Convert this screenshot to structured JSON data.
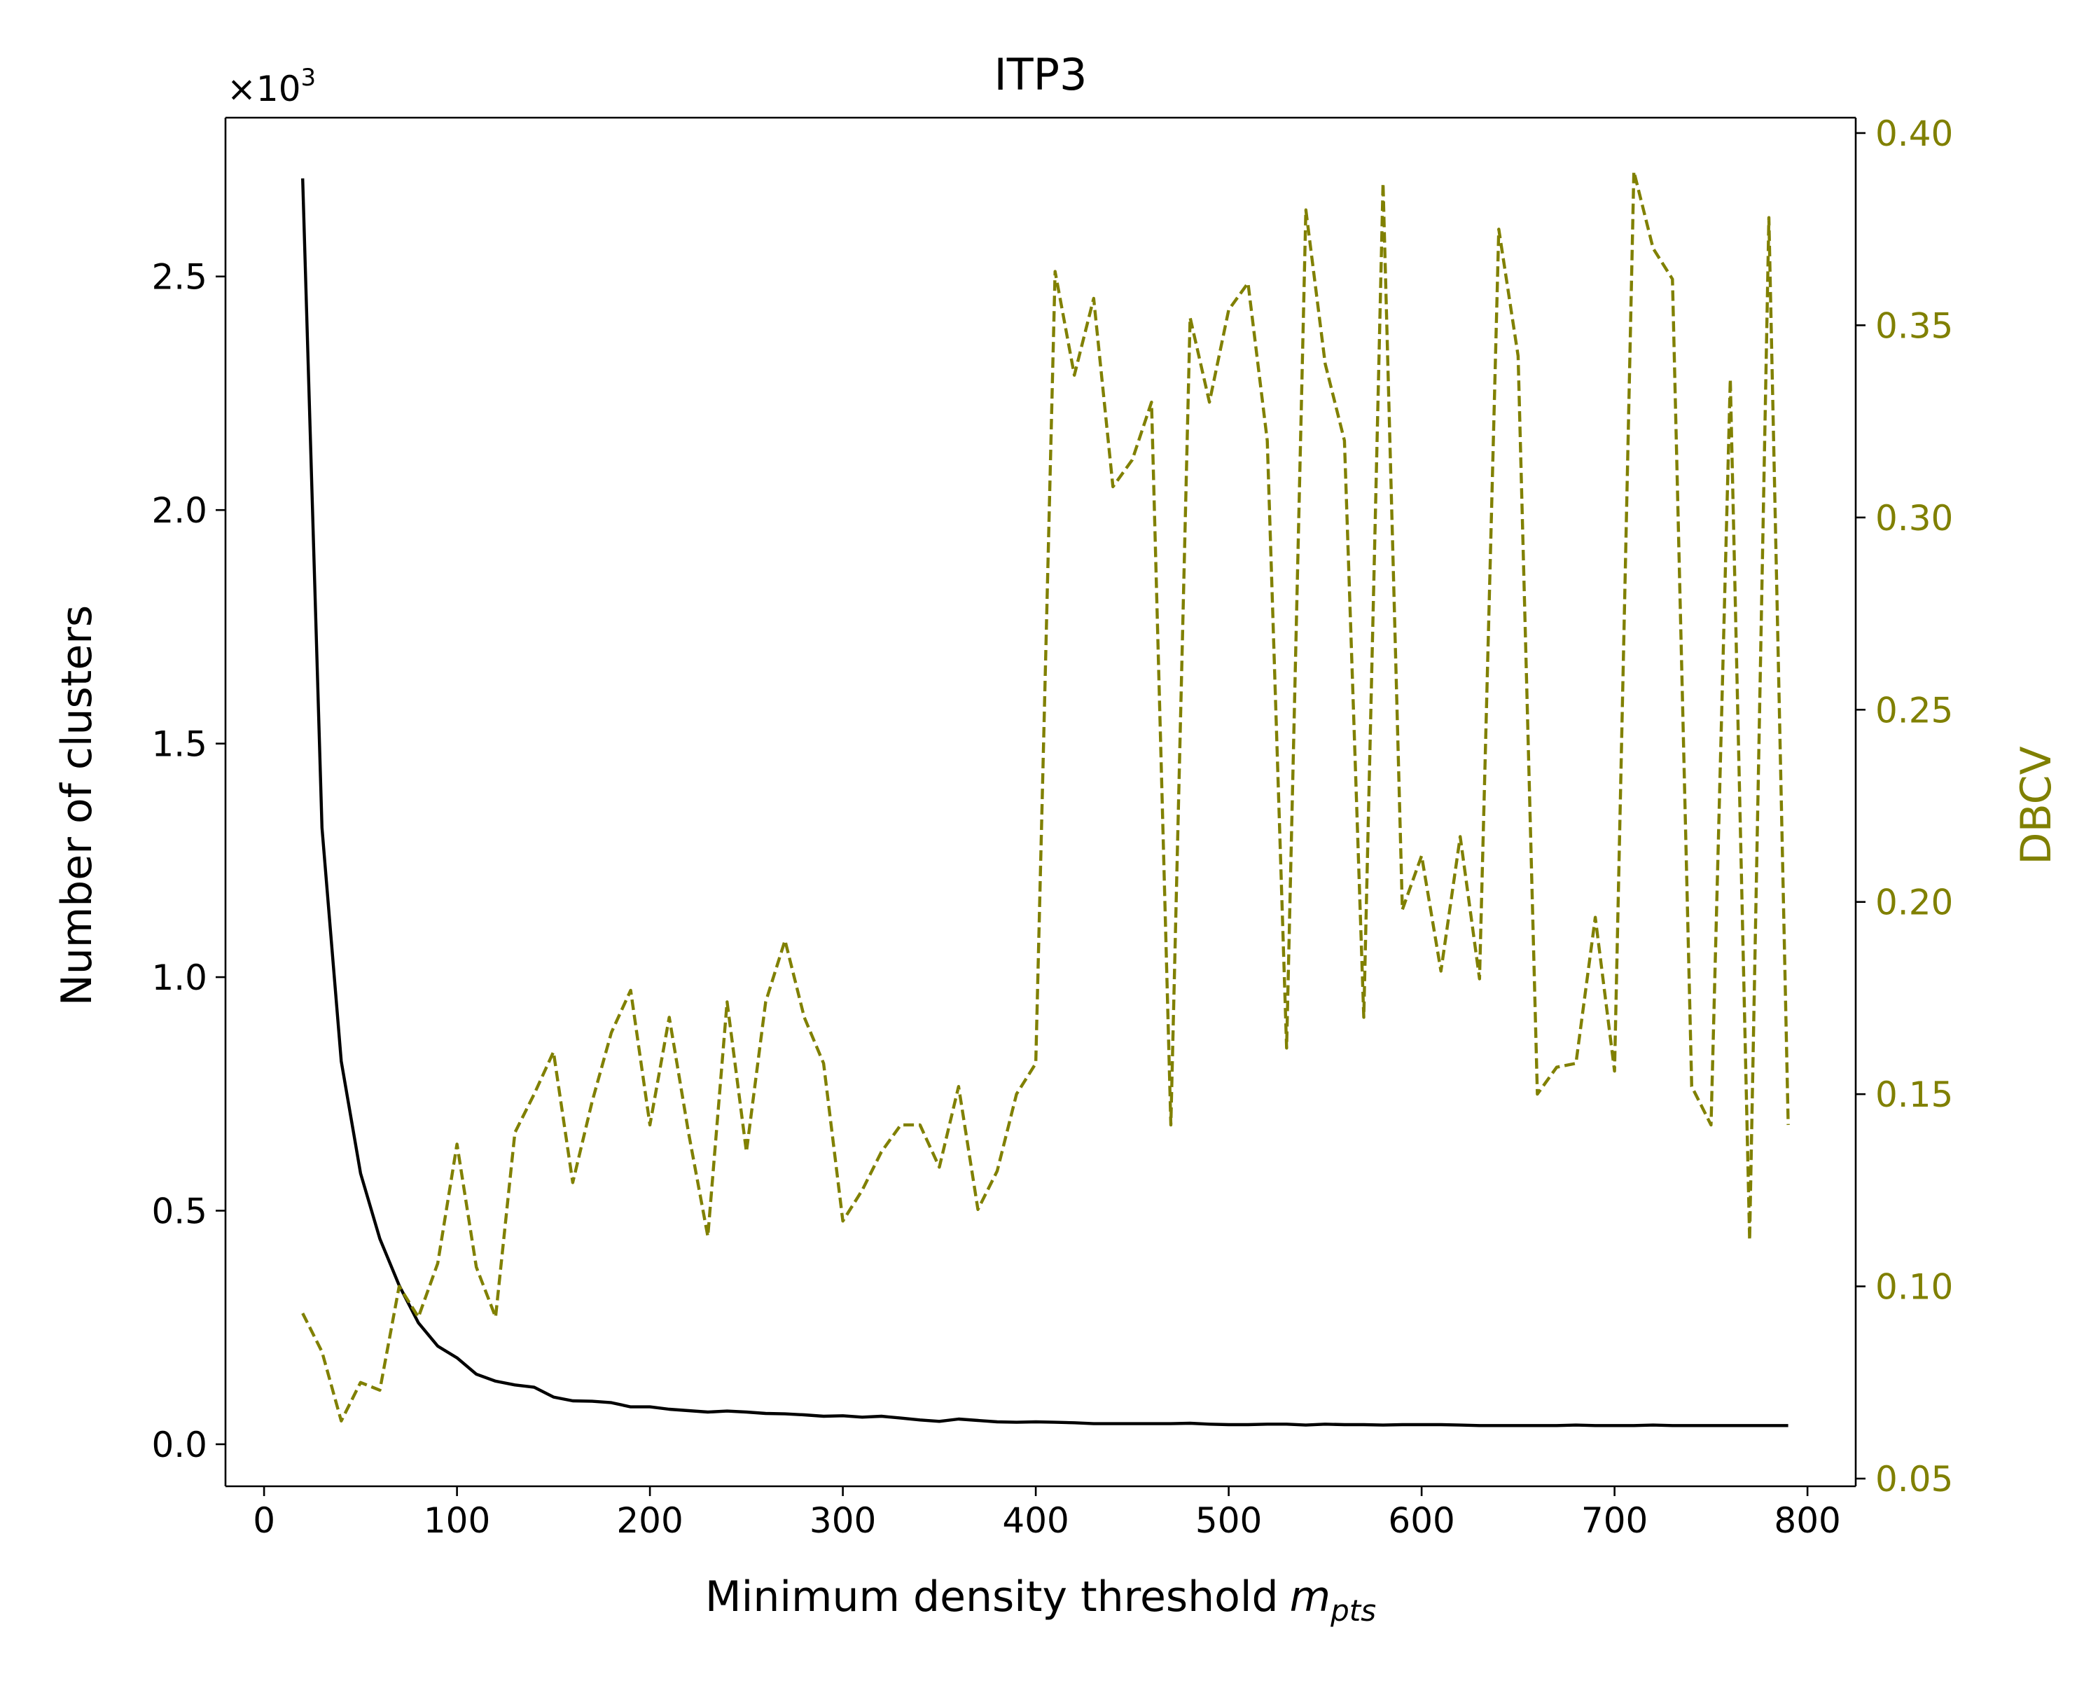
{
  "chart_data": {
    "type": "line",
    "title": "ITP3",
    "xlabel": "Minimum density threshold",
    "xlabel_math": "m",
    "xlabel_sub": "pts",
    "ylabel": "Number of clusters",
    "y2label": "DBCV",
    "y_offset_label": "×10",
    "y_offset_exponent": "3",
    "xlim": [
      -20,
      825
    ],
    "ylim": [
      -0.09,
      2.84
    ],
    "y2lim": [
      0.048,
      0.404
    ],
    "xticks": [
      0,
      100,
      200,
      300,
      400,
      500,
      600,
      700,
      800
    ],
    "xtick_labels": [
      "0",
      "100",
      "200",
      "300",
      "400",
      "500",
      "600",
      "700",
      "800"
    ],
    "yticks": [
      0.0,
      0.5,
      1.0,
      1.5,
      2.0,
      2.5
    ],
    "ytick_labels": [
      "0.0",
      "0.5",
      "1.0",
      "1.5",
      "2.0",
      "2.5"
    ],
    "y2ticks": [
      0.05,
      0.1,
      0.15,
      0.2,
      0.25,
      0.3,
      0.35,
      0.4
    ],
    "y2tick_labels": [
      "0.05",
      "0.10",
      "0.15",
      "0.20",
      "0.25",
      "0.30",
      "0.35",
      "0.40"
    ],
    "grid": false,
    "colors": {
      "clusters": "#000000",
      "dbcv": "#808000",
      "axes": "#000000",
      "right_axis": "#808000"
    },
    "x": [
      20,
      30,
      40,
      50,
      60,
      70,
      80,
      90,
      100,
      110,
      120,
      130,
      140,
      150,
      160,
      170,
      180,
      190,
      200,
      210,
      220,
      230,
      240,
      250,
      260,
      270,
      280,
      290,
      300,
      310,
      320,
      330,
      340,
      350,
      360,
      370,
      380,
      390,
      400,
      410,
      420,
      430,
      440,
      450,
      460,
      470,
      480,
      490,
      500,
      510,
      520,
      530,
      540,
      550,
      560,
      570,
      580,
      590,
      600,
      610,
      620,
      630,
      640,
      650,
      660,
      670,
      680,
      690,
      700,
      710,
      720,
      730,
      740,
      750,
      760,
      770,
      780,
      790
    ],
    "series": [
      {
        "key": "clusters",
        "axis": "left",
        "style": "solid",
        "values": [
          2.71,
          1.32,
          0.82,
          0.58,
          0.44,
          0.34,
          0.26,
          0.21,
          0.185,
          0.15,
          0.135,
          0.127,
          0.122,
          0.101,
          0.093,
          0.092,
          0.089,
          0.08,
          0.08,
          0.075,
          0.072,
          0.069,
          0.071,
          0.069,
          0.066,
          0.065,
          0.063,
          0.06,
          0.061,
          0.058,
          0.06,
          0.056,
          0.052,
          0.049,
          0.054,
          0.051,
          0.048,
          0.047,
          0.048,
          0.047,
          0.046,
          0.044,
          0.044,
          0.044,
          0.044,
          0.044,
          0.045,
          0.043,
          0.042,
          0.042,
          0.043,
          0.043,
          0.041,
          0.043,
          0.042,
          0.042,
          0.041,
          0.042,
          0.042,
          0.042,
          0.041,
          0.04,
          0.04,
          0.04,
          0.04,
          0.04,
          0.041,
          0.04,
          0.04,
          0.04,
          0.041,
          0.04,
          0.04,
          0.04,
          0.04,
          0.04,
          0.04,
          0.04
        ]
      },
      {
        "key": "dbcv",
        "axis": "right",
        "style": "dashed",
        "values": [
          0.093,
          0.083,
          0.065,
          0.075,
          0.073,
          0.1,
          0.092,
          0.106,
          0.137,
          0.105,
          0.092,
          0.14,
          0.15,
          0.161,
          0.127,
          0.148,
          0.166,
          0.177,
          0.142,
          0.17,
          0.14,
          0.113,
          0.174,
          0.135,
          0.174,
          0.19,
          0.17,
          0.158,
          0.117,
          0.125,
          0.135,
          0.142,
          0.142,
          0.131,
          0.152,
          0.12,
          0.13,
          0.15,
          0.158,
          0.364,
          0.337,
          0.357,
          0.308,
          0.315,
          0.33,
          0.142,
          0.352,
          0.33,
          0.354,
          0.361,
          0.32,
          0.162,
          0.38,
          0.34,
          0.32,
          0.17,
          0.387,
          0.198,
          0.212,
          0.182,
          0.217,
          0.18,
          0.375,
          0.342,
          0.15,
          0.157,
          0.158,
          0.196,
          0.156,
          0.39,
          0.37,
          0.362,
          0.152,
          0.142,
          0.336,
          0.112,
          0.378,
          0.142
        ]
      }
    ]
  }
}
